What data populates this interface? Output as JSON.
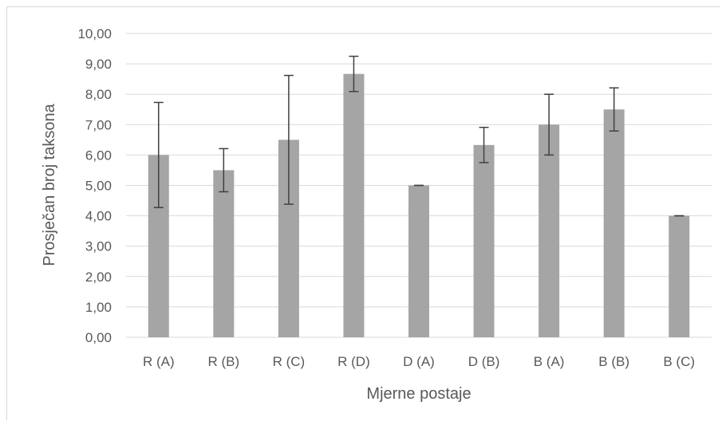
{
  "chart_data": {
    "type": "bar",
    "title": "",
    "xlabel": "Mjerne postaje",
    "ylabel": "Prosječan broj taksona",
    "categories": [
      "R (A)",
      "R (B)",
      "R (C)",
      "R (D)",
      "D (A)",
      "D (B)",
      "B (A)",
      "B (B)",
      "B (C)"
    ],
    "values": [
      6.0,
      5.5,
      6.5,
      8.67,
      5.0,
      6.33,
      7.0,
      7.5,
      4.0
    ],
    "error": [
      1.73,
      0.71,
      2.12,
      0.58,
      0.0,
      0.58,
      1.0,
      0.71,
      0.0
    ],
    "ylim": [
      0,
      10
    ],
    "yticks": [
      "0,00",
      "1,00",
      "2,00",
      "3,00",
      "4,00",
      "5,00",
      "6,00",
      "7,00",
      "8,00",
      "9,00",
      "10,00"
    ],
    "grid": true,
    "legend": "none",
    "colors": {
      "bar": "#a5a5a5",
      "gridline": "#d9d9d9",
      "errorbar": "#404040",
      "text": "#595959"
    }
  }
}
